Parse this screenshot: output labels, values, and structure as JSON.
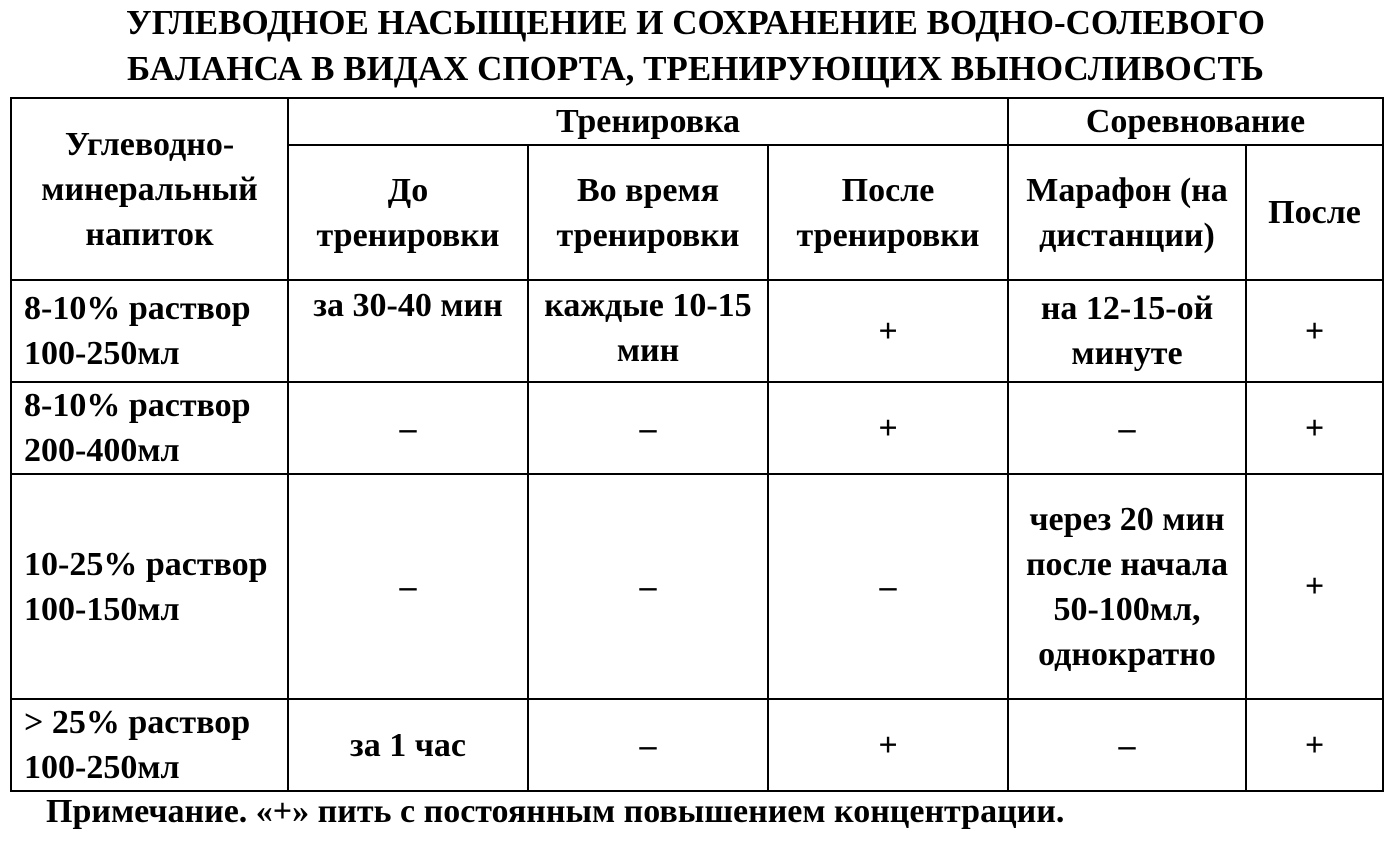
{
  "title": {
    "line1": "УГЛЕВОДНОЕ НАСЫЩЕНИЕ И СОХРАНЕНИЕ ВОДНО-СОЛЕВОГО",
    "line2": "БАЛАНСА В ВИДАХ СПОРТА, ТРЕНИРУЮЩИХ ВЫНОСЛИВОСТЬ"
  },
  "table": {
    "corner": "Углеводно-минеральный напиток",
    "group_training": "Тренировка",
    "group_competition": "Соревнование",
    "columns": [
      "До тренировки",
      "Во время тренировки",
      "После тренировки",
      "Марафон (на дистанции)",
      "После"
    ],
    "rows": [
      {
        "drink": "8-10% раствор 100-250мл",
        "cells": [
          "за 30-40 мин",
          "каждые 10-15 мин",
          "+",
          "на 12-15-ой минуте",
          "+"
        ]
      },
      {
        "drink": "8-10% раствор 200-400мл",
        "cells": [
          "–",
          "–",
          "+",
          "–",
          "+"
        ]
      },
      {
        "drink": "10-25% раствор 100-150мл",
        "cells": [
          "–",
          "–",
          "–",
          "через 20 мин после начала 50-100мл, однократно",
          "+"
        ]
      },
      {
        "drink": "> 25% раствор 100-250мл",
        "cells": [
          "за 1 час",
          "–",
          "+",
          "–",
          "+"
        ]
      }
    ]
  },
  "note": "Примечание. «+» пить с постоянным повышением концентрации."
}
